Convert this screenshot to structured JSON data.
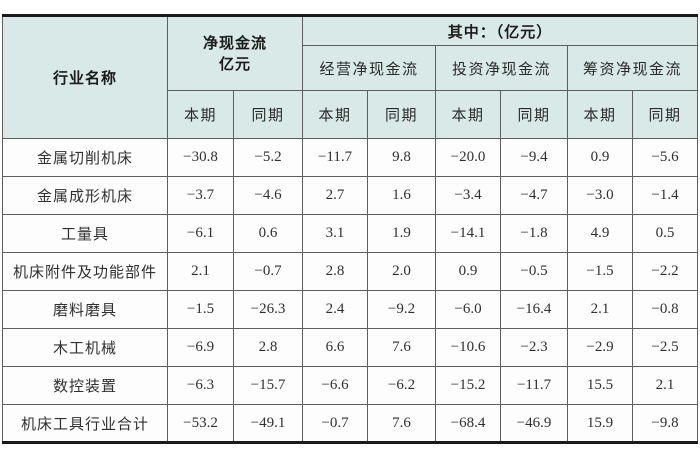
{
  "table": {
    "headers": {
      "industry": "行业名称",
      "net_cash_line1": "净现金流",
      "net_cash_line2": "亿元",
      "among": "其中：（亿元）",
      "groups": [
        "经营净现金流",
        "投资净现金流",
        "筹资净现金流"
      ],
      "periods": [
        "本期",
        "同期",
        "本期",
        "同期",
        "本期",
        "同期",
        "本期",
        "同期"
      ]
    },
    "rows": [
      {
        "label": "金属切削机床",
        "values": [
          "−30.8",
          "−5.2",
          "−11.7",
          "9.8",
          "−20.0",
          "−9.4",
          "0.9",
          "−5.6"
        ]
      },
      {
        "label": "金属成形机床",
        "values": [
          "−3.7",
          "−4.6",
          "2.7",
          "1.6",
          "−3.4",
          "−4.7",
          "−3.0",
          "−1.4"
        ]
      },
      {
        "label": "工量具",
        "values": [
          "−6.1",
          "0.6",
          "3.1",
          "1.9",
          "−14.1",
          "−1.8",
          "4.9",
          "0.5"
        ]
      },
      {
        "label": "机床附件及功能部件",
        "values": [
          "2.1",
          "−0.7",
          "2.8",
          "2.0",
          "0.9",
          "−0.5",
          "−1.5",
          "−2.2"
        ]
      },
      {
        "label": "磨料磨具",
        "values": [
          "−1.5",
          "−26.3",
          "2.4",
          "−9.2",
          "−6.0",
          "−16.4",
          "2.1",
          "−0.8"
        ]
      },
      {
        "label": "木工机械",
        "values": [
          "−6.9",
          "2.8",
          "6.6",
          "7.6",
          "−10.6",
          "−2.3",
          "−2.9",
          "−2.5"
        ]
      },
      {
        "label": "数控装置",
        "values": [
          "−6.3",
          "−15.7",
          "−6.6",
          "−6.2",
          "−15.2",
          "−11.7",
          "15.5",
          "2.1"
        ]
      },
      {
        "label": "机床工具行业合计",
        "values": [
          "−53.2",
          "−49.1",
          "−0.7",
          "7.6",
          "−68.4",
          "−46.9",
          "15.9",
          "−9.8"
        ]
      }
    ]
  },
  "colors": {
    "header_bg": "#d8e9e7",
    "cell_bg": "#fdfdfd",
    "grid_border": "#5e5e5e",
    "outer_border": "#1a1a1a",
    "header_text": "#1b1b1b",
    "body_text": "#303030"
  }
}
